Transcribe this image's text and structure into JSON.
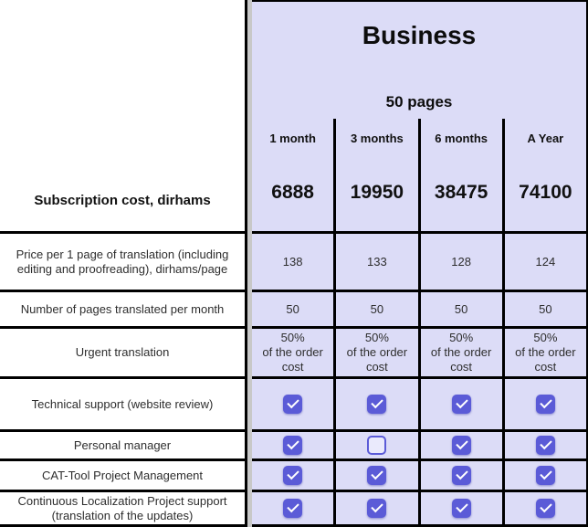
{
  "panel": {
    "title": "Business",
    "subtitle": "50 pages",
    "columns": [
      "1 month",
      "3 months",
      "6 months",
      "A Year"
    ]
  },
  "subscription": {
    "label": "Subscription cost, dirhams",
    "prices": [
      "6888",
      "19950",
      "38475",
      "74100"
    ]
  },
  "rows": [
    {
      "label": "Price per 1 page of translation (including\nediting and proofreading), dirhams/page",
      "values": [
        "138",
        "133",
        "128",
        "124"
      ]
    },
    {
      "label": "Number of pages translated per month",
      "values": [
        "50",
        "50",
        "50",
        "50"
      ]
    },
    {
      "label": "Urgent translation",
      "values": [
        "50%\nof the order\ncost",
        "50%\nof the order\ncost",
        "50%\nof the order\ncost",
        "50%\nof the order\ncost"
      ]
    },
    {
      "label": "Technical support (website review)",
      "checkboxes": [
        true,
        true,
        true,
        true
      ]
    },
    {
      "label": "Personal manager",
      "checkboxes": [
        true,
        false,
        true,
        true
      ]
    },
    {
      "label": "CAT-Tool Project Management",
      "checkboxes": [
        true,
        true,
        true,
        true
      ]
    },
    {
      "label": "Continuous Localization Project support\n(translation of the updates)",
      "checkboxes": [
        true,
        true,
        true,
        true
      ]
    }
  ],
  "colors": {
    "panel_background": "#dcdcf7",
    "checkbox_fill": "#5b5bd7",
    "divider_grey": "#c8c8c8",
    "border": "#000000"
  }
}
